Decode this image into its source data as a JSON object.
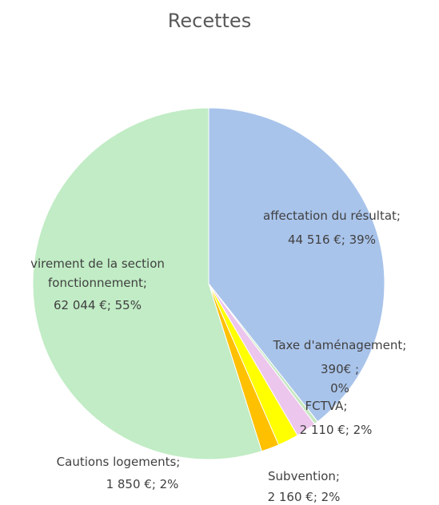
{
  "chart_data": {
    "type": "pie",
    "title": "Recettes",
    "categories": [
      "affectation du résultat;",
      "Taxe d'aménagement;",
      "FCTVA;",
      "Subvention;",
      "Cautions logements;",
      "virement de la section fonctionnement;"
    ],
    "values": [
      44516,
      390,
      2110,
      2160,
      1850,
      62044
    ],
    "value_labels": [
      "44 516 €; 39%",
      "390€ ; 0%",
      "2 110 €; 2%",
      "2 160 €; 2%",
      "1 850 €; 2%",
      "62 044 €; 55%"
    ],
    "colors": [
      "#a9c4eb",
      "#c5e8c0",
      "#ecc6ec",
      "#ffff00",
      "#ffc000",
      "#c1ecc5"
    ]
  }
}
